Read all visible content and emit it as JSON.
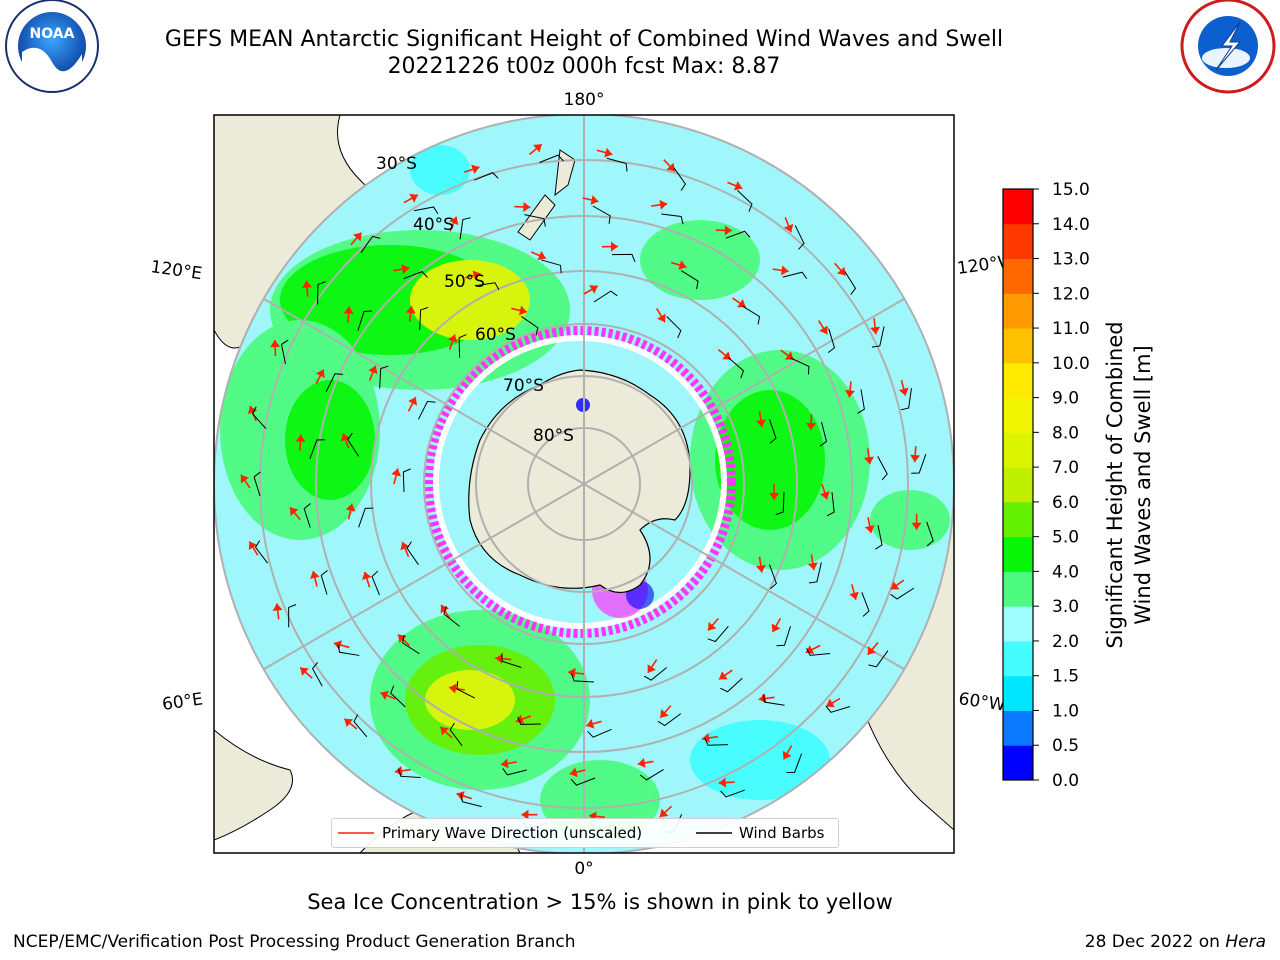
{
  "header": {
    "title_line1": "GEFS MEAN Antarctic Significant Height of Combined Wind Waves and Swell",
    "title_line2": "20221226 t00z 000h fcst   Max: 8.87"
  },
  "map": {
    "projection": "south-polar-stereographic",
    "lat_labels": [
      "30°S",
      "40°S",
      "50°S",
      "60°S",
      "70°S",
      "80°S"
    ],
    "lon_labels": {
      "top": "180°",
      "bottom": "0°",
      "upper_left": "120°E",
      "upper_right": "120°W",
      "lower_left": "60°E",
      "lower_right": "60°W"
    },
    "colors": {
      "land": "#ecebd9",
      "ocean_low": "#9ff7fb",
      "ocean_mid": "#2cff54",
      "ocean_high": "#dcfb14",
      "sea_ice": "#ff33ff",
      "graticule": "#b0b0b0",
      "wave_arrow": "#ff2200"
    }
  },
  "legend": {
    "wave_label": "Primary Wave Direction (unscaled)",
    "wind_label": "Wind Barbs"
  },
  "colorbar": {
    "label_line1": "Significant Height of Combined",
    "label_line2": "Wind Waves and Swell [m]",
    "ticks": [
      "0.0",
      "0.5",
      "1.0",
      "1.5",
      "2.0",
      "3.0",
      "4.0",
      "5.0",
      "6.0",
      "7.0",
      "8.0",
      "9.0",
      "10.0",
      "11.0",
      "12.0",
      "13.0",
      "14.0",
      "15.0"
    ],
    "colors": [
      "#0000ff",
      "#0a78ff",
      "#00e6ff",
      "#45fdff",
      "#9efdff",
      "#4dfb80",
      "#07f607",
      "#63f002",
      "#bff000",
      "#dbf500",
      "#f2f500",
      "#ffea00",
      "#ffc200",
      "#ff9a00",
      "#ff6900",
      "#ff3a00",
      "#ff0000"
    ]
  },
  "note": "Sea Ice Concentration > 15% is shown in pink to yellow",
  "footer": {
    "left": "NCEP/EMC/Verification Post Processing Product Generation Branch",
    "right_date": "28 Dec 2022 on",
    "right_host": "Hera"
  },
  "logos": {
    "noaa_text": "NOAA",
    "noaa_ring": "NATIONAL OCEANIC AND ATMOSPHERIC ADMINISTRATION · U.S. DEPARTMENT OF COMMERCE",
    "nws_ring": "NATIONAL WEATHER SERVICE"
  }
}
